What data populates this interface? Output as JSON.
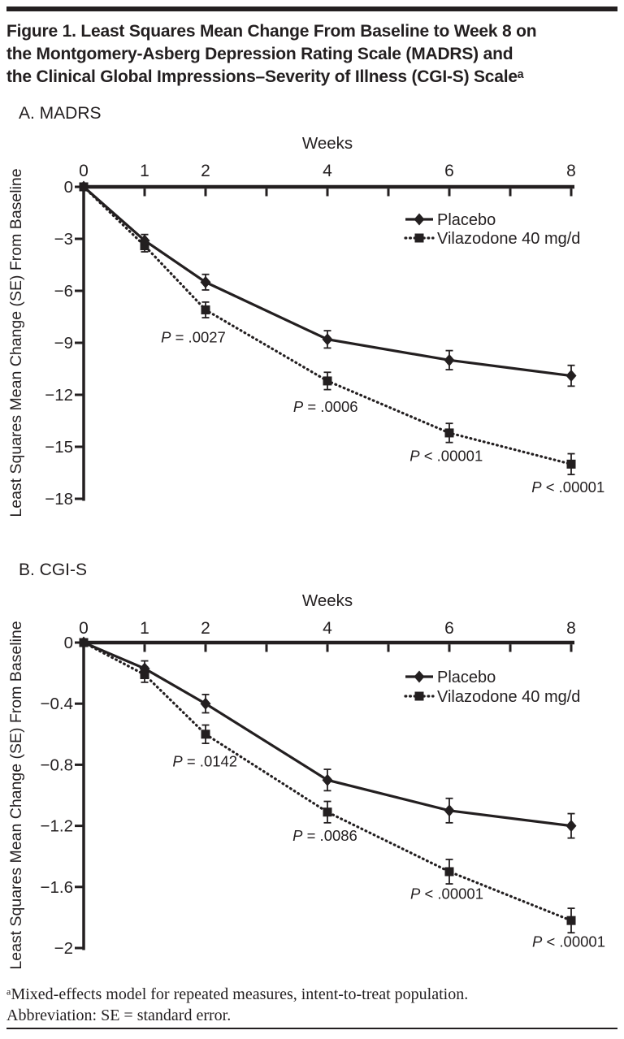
{
  "figure": {
    "ink": "#231f20",
    "title_lines": [
      "Figure 1. Least Squares Mean Change From Baseline to Week 8 on",
      "the Montgomery-Asberg Depression Rating Scale (MADRS) and",
      "the Clinical Global Impressions–Severity of Illness (CGI-S) Scaleᵃ"
    ],
    "panel_a_label": "A. MADRS",
    "panel_b_label": "B. CGI-S",
    "footnote_line1": "ᵃMixed-effects model for repeated measures, intent-to-treat population.",
    "footnote_line2": "Abbreviation: SE = standard error."
  },
  "chart_data": [
    {
      "type": "line",
      "panel_label": "A. MADRS",
      "title": "",
      "xlabel": "Weeks",
      "ylabel": "Least Squares Mean Change (SE) From Baseline",
      "xlim": [
        0,
        8
      ],
      "x_axis_ticks": [
        1,
        2,
        3,
        4,
        5,
        6,
        7,
        8
      ],
      "x_tick_label_positions": [
        0,
        1,
        2,
        4,
        6,
        8
      ],
      "x_tick_labels": [
        "0",
        "1",
        "2",
        "4",
        "6",
        "8"
      ],
      "ylim": [
        0,
        -18
      ],
      "y_ticks": [
        0,
        -3,
        -6,
        -9,
        -12,
        -15,
        -18
      ],
      "grid": false,
      "legend_position": "upper right",
      "x": [
        0,
        1,
        2,
        4,
        6,
        8
      ],
      "series": [
        {
          "name": "Placebo",
          "marker": "diamond",
          "line_style": "solid",
          "values": [
            0,
            -3.1,
            -5.5,
            -8.8,
            -10.0,
            -10.9
          ],
          "se": [
            0,
            0.35,
            0.45,
            0.5,
            0.55,
            0.6
          ]
        },
        {
          "name": "Vilazodone 40 mg/d",
          "marker": "square",
          "line_style": "dotted",
          "values": [
            0,
            -3.4,
            -7.1,
            -11.2,
            -14.2,
            -16.0
          ],
          "se": [
            0,
            0.35,
            0.45,
            0.5,
            0.55,
            0.6
          ]
        }
      ],
      "annotations": [
        {
          "text": "P = .0027",
          "x": 1.8,
          "y": -8.7
        },
        {
          "text": "P = .0006",
          "x": 3.97,
          "y": -12.7
        },
        {
          "text": "P < .00001",
          "x": 5.95,
          "y": -15.55
        },
        {
          "text": "P < .00001",
          "x": 7.95,
          "y": -17.35
        }
      ]
    },
    {
      "type": "line",
      "panel_label": "B. CGI-S",
      "title": "",
      "xlabel": "Weeks",
      "ylabel": "Least Squares Mean Change (SE) From Baseline",
      "xlim": [
        0,
        8
      ],
      "x_axis_ticks": [
        1,
        2,
        3,
        4,
        5,
        6,
        7,
        8
      ],
      "x_tick_label_positions": [
        0,
        1,
        2,
        4,
        6,
        8
      ],
      "x_tick_labels": [
        "0",
        "1",
        "2",
        "4",
        "6",
        "8"
      ],
      "ylim": [
        0,
        -2
      ],
      "y_ticks": [
        0,
        -0.4,
        -0.8,
        -1.2,
        -1.6,
        -2
      ],
      "grid": false,
      "legend_position": "upper right",
      "x": [
        0,
        1,
        2,
        4,
        6,
        8
      ],
      "series": [
        {
          "name": "Placebo",
          "marker": "diamond",
          "line_style": "solid",
          "values": [
            0,
            -0.17,
            -0.4,
            -0.9,
            -1.1,
            -1.2
          ],
          "se": [
            0,
            0.05,
            0.06,
            0.07,
            0.08,
            0.08
          ]
        },
        {
          "name": "Vilazodone 40 mg/d",
          "marker": "square",
          "line_style": "dotted",
          "values": [
            0,
            -0.21,
            -0.6,
            -1.11,
            -1.5,
            -1.82
          ],
          "se": [
            0,
            0.05,
            0.06,
            0.07,
            0.08,
            0.08
          ]
        }
      ],
      "annotations": [
        {
          "text": "P = .0142",
          "x": 1.99,
          "y": -0.78
        },
        {
          "text": "P = .0086",
          "x": 3.96,
          "y": -1.265
        },
        {
          "text": "P < .00001",
          "x": 5.96,
          "y": -1.645
        },
        {
          "text": "P < .00001",
          "x": 7.96,
          "y": -1.96
        }
      ]
    }
  ]
}
